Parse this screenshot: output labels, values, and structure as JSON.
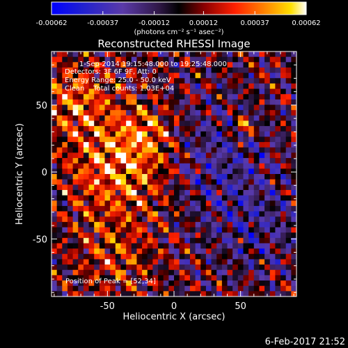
{
  "chart_data": {
    "type": "heatmap",
    "title": "Reconstructed RHESSI Image",
    "xlabel": "Heliocentric X (arcsec)",
    "ylabel": "Heliocentric Y (arcsec)",
    "xlim": [
      -92,
      92
    ],
    "ylim": [
      -93,
      90
    ],
    "x_ticks": [
      -50,
      0,
      50
    ],
    "y_ticks": [
      -50,
      0,
      50
    ],
    "colorbar": {
      "ticks": [
        "-0.00062",
        "-0.00037",
        "-0.00012",
        "0.00012",
        "0.00037",
        "0.00062"
      ],
      "tick_values": [
        -0.00062,
        -0.00037,
        -0.00012,
        0.00012,
        0.00037,
        0.00062
      ],
      "unit_label": "(photons cm⁻² s⁻¹ asec⁻²)",
      "range": [
        -0.00062,
        0.00062
      ]
    },
    "annotations": [
      "1-Sep-2014 19:15:48.000 to 19:25:48.000",
      "Detectors: 3F 6F 9F, Att: 0",
      "Energy Range: 25.0 - 50.0 keV",
      "Clean    Total counts: 1.03E+04"
    ],
    "peak_label": "Position of Peak = [52,34]",
    "peak_position": [
      52,
      34
    ],
    "grid_size": 46,
    "colors": {
      "colormap_stops": [
        "#0000ff",
        "#3a2cc0",
        "#7040a0",
        "#000000",
        "#8a0000",
        "#ff2000",
        "#ff8000",
        "#ffd000",
        "#ffffff"
      ]
    }
  },
  "footer": {
    "timestamp": "6-Feb-2017 21:52"
  }
}
